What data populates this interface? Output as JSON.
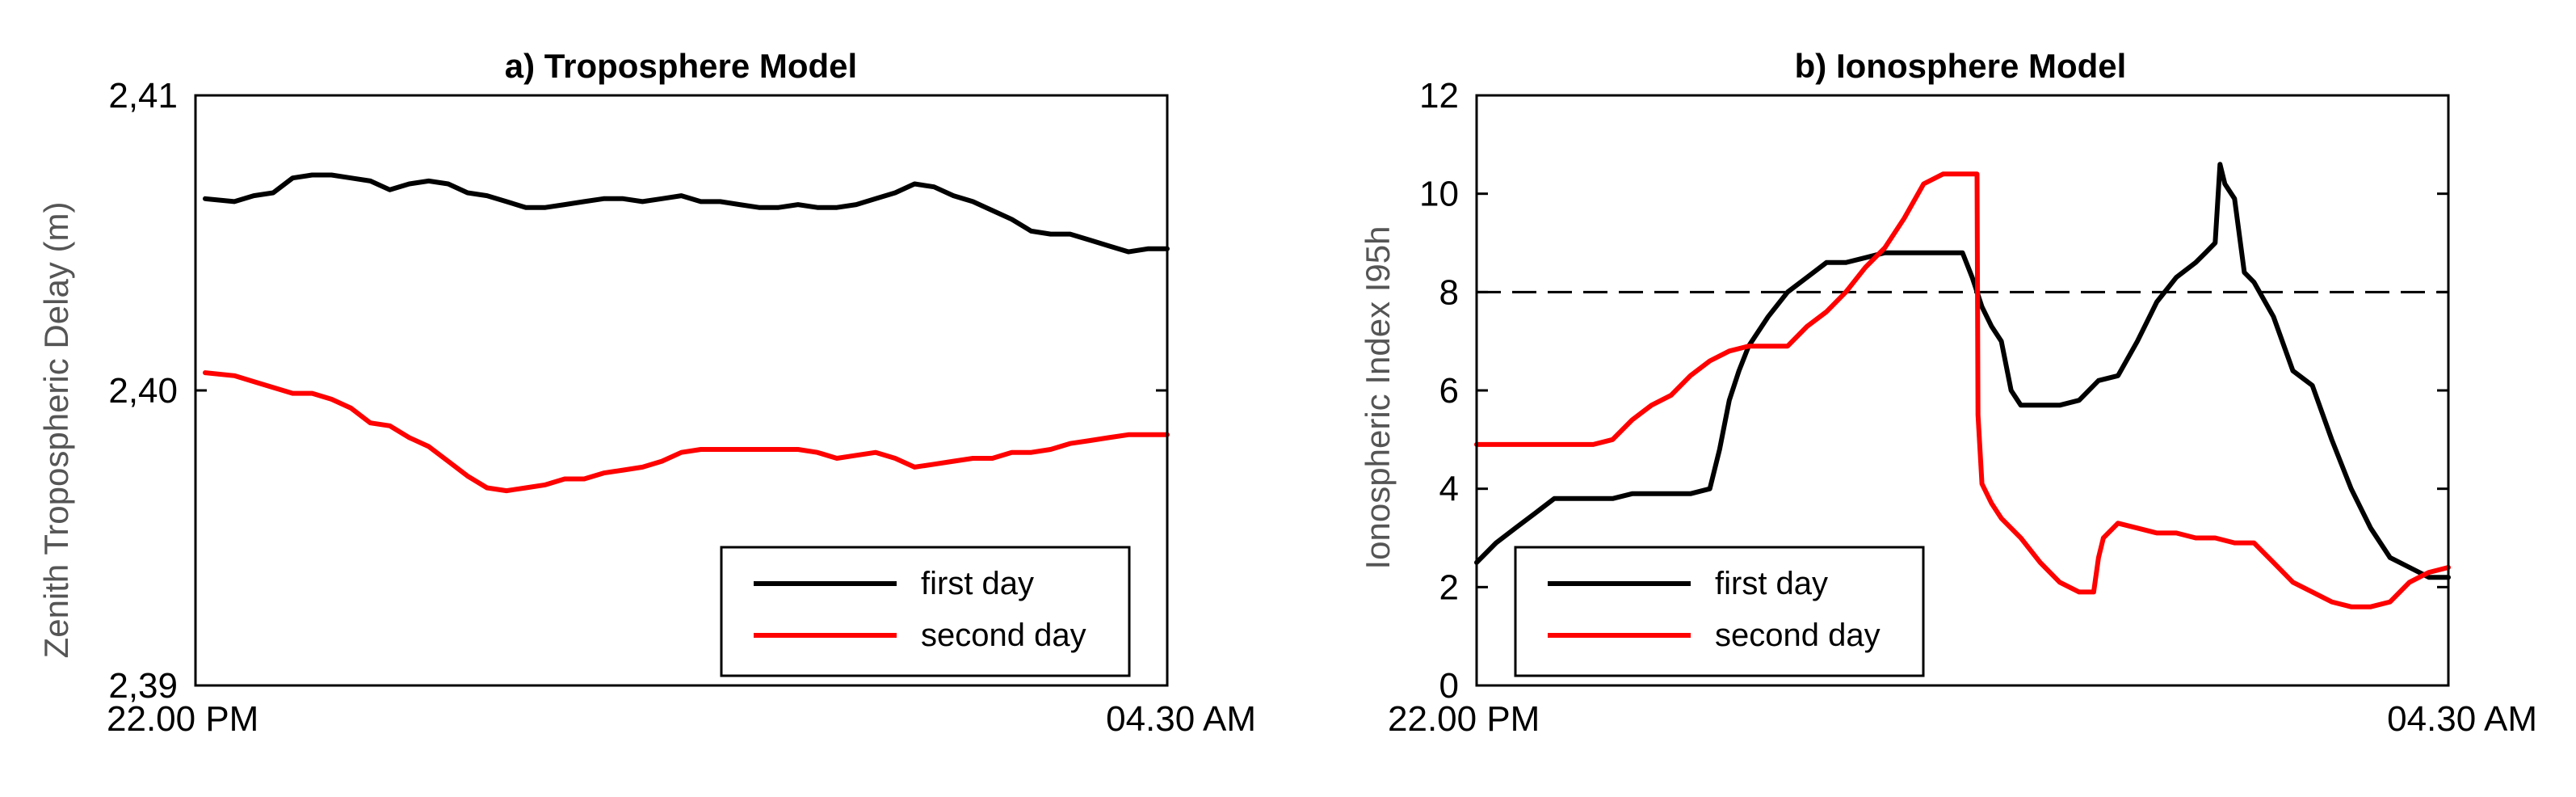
{
  "chart_data": [
    {
      "type": "line",
      "title": "a) Troposphere Model",
      "xlabel": "",
      "ylabel": "Zenith Tropospheric Delay (m)",
      "xlim": [
        0,
        100
      ],
      "ylim": [
        2.39,
        2.41
      ],
      "xtick_values": [
        0,
        100
      ],
      "xtick_labels": [
        "22.00 PM",
        "04.30 AM"
      ],
      "ytick_values": [
        2.39,
        2.4,
        2.41
      ],
      "ytick_labels": [
        "2,39",
        "2,40",
        "2,41"
      ],
      "legend_position": "bottom-right",
      "series": [
        {
          "name": "first day",
          "color": "#000000",
          "x": [
            1,
            4,
            6,
            8,
            10,
            12,
            14,
            16,
            18,
            20,
            22,
            24,
            26,
            28,
            30,
            32,
            34,
            36,
            38,
            40,
            42,
            44,
            46,
            48,
            50,
            52,
            54,
            56,
            58,
            60,
            62,
            64,
            66,
            68,
            70,
            72,
            74,
            76,
            78,
            80,
            82,
            84,
            86,
            88,
            90,
            92,
            94,
            96,
            98,
            100
          ],
          "y": [
            2.4065,
            2.4064,
            2.4066,
            2.4067,
            2.4072,
            2.4073,
            2.4073,
            2.4072,
            2.4071,
            2.4068,
            2.407,
            2.4071,
            2.407,
            2.4067,
            2.4066,
            2.4064,
            2.4062,
            2.4062,
            2.4063,
            2.4064,
            2.4065,
            2.4065,
            2.4064,
            2.4065,
            2.4066,
            2.4064,
            2.4064,
            2.4063,
            2.4062,
            2.4062,
            2.4063,
            2.4062,
            2.4062,
            2.4063,
            2.4065,
            2.4067,
            2.407,
            2.4069,
            2.4066,
            2.4064,
            2.4061,
            2.4058,
            2.4054,
            2.4053,
            2.4053,
            2.4051,
            2.4049,
            2.4047,
            2.4048,
            2.4048
          ]
        },
        {
          "name": "second day",
          "color": "#ff0000",
          "x": [
            1,
            4,
            6,
            8,
            10,
            12,
            14,
            16,
            18,
            20,
            22,
            24,
            26,
            28,
            30,
            32,
            34,
            36,
            38,
            40,
            42,
            44,
            46,
            48,
            50,
            52,
            54,
            56,
            58,
            60,
            62,
            64,
            66,
            68,
            70,
            72,
            74,
            76,
            78,
            80,
            82,
            84,
            86,
            88,
            90,
            92,
            94,
            96,
            98,
            100
          ],
          "y": [
            2.4006,
            2.4005,
            2.4003,
            2.4001,
            2.3999,
            2.3999,
            2.3997,
            2.3994,
            2.3989,
            2.3988,
            2.3984,
            2.3981,
            2.3976,
            2.3971,
            2.3967,
            2.3966,
            2.3967,
            2.3968,
            2.397,
            2.397,
            2.3972,
            2.3973,
            2.3974,
            2.3976,
            2.3979,
            2.398,
            2.398,
            2.398,
            2.398,
            2.398,
            2.398,
            2.3979,
            2.3977,
            2.3978,
            2.3979,
            2.3977,
            2.3974,
            2.3975,
            2.3976,
            2.3977,
            2.3977,
            2.3979,
            2.3979,
            2.398,
            2.3982,
            2.3983,
            2.3984,
            2.3985,
            2.3985,
            2.3985
          ]
        }
      ]
    },
    {
      "type": "line",
      "title": "b) Ionosphere Model",
      "xlabel": "",
      "ylabel": "Ionospheric Index I95h",
      "xlim": [
        0,
        100
      ],
      "ylim": [
        0,
        12
      ],
      "xtick_values": [
        0,
        100
      ],
      "xtick_labels": [
        "22.00 PM",
        "04.30 AM"
      ],
      "ytick_values": [
        0,
        2,
        4,
        6,
        8,
        10,
        12
      ],
      "ytick_labels": [
        "0",
        "2",
        "4",
        "6",
        "8",
        "10",
        "12"
      ],
      "reference_line": {
        "y": 8,
        "style": "dashed"
      },
      "legend_position": "bottom-left",
      "series": [
        {
          "name": "first day",
          "color": "#000000",
          "x": [
            0,
            2,
            4,
            6,
            8,
            10,
            12,
            14,
            16,
            18,
            20,
            22,
            24,
            25,
            26,
            27,
            28,
            30,
            32,
            34,
            36,
            38,
            40,
            42,
            44,
            46,
            48,
            50,
            51,
            52,
            53,
            54,
            55,
            56,
            58,
            60,
            62,
            64,
            66,
            68,
            70,
            72,
            74,
            75,
            76,
            76.5,
            77,
            78,
            79,
            80,
            82,
            84,
            86,
            88,
            90,
            92,
            94,
            96,
            98,
            100
          ],
          "y": [
            2.5,
            2.9,
            3.2,
            3.5,
            3.8,
            3.8,
            3.8,
            3.8,
            3.9,
            3.9,
            3.9,
            3.9,
            4.0,
            4.8,
            5.8,
            6.4,
            6.9,
            7.5,
            8.0,
            8.3,
            8.6,
            8.6,
            8.7,
            8.8,
            8.8,
            8.8,
            8.8,
            8.8,
            8.3,
            7.7,
            7.3,
            7.0,
            6.0,
            5.7,
            5.7,
            5.7,
            5.8,
            6.2,
            6.3,
            7.0,
            7.8,
            8.3,
            8.6,
            8.8,
            9.0,
            10.6,
            10.2,
            9.9,
            8.4,
            8.2,
            7.5,
            6.4,
            6.1,
            5.0,
            4.0,
            3.2,
            2.6,
            2.4,
            2.2,
            2.2
          ]
        },
        {
          "name": "second day",
          "color": "#ff0000",
          "x": [
            0,
            4,
            8,
            12,
            14,
            16,
            18,
            20,
            22,
            24,
            26,
            28,
            30,
            32,
            34,
            36,
            38,
            40,
            42,
            44,
            46,
            48,
            50,
            51.5,
            51.6,
            52,
            53,
            54,
            56,
            58,
            60,
            62,
            63.5,
            64,
            64.5,
            66,
            68,
            70,
            72,
            74,
            76,
            78,
            80,
            82,
            84,
            86,
            88,
            90,
            92,
            94,
            96,
            98,
            100
          ],
          "y": [
            4.9,
            4.9,
            4.9,
            4.9,
            5.0,
            5.4,
            5.7,
            5.9,
            6.3,
            6.6,
            6.8,
            6.9,
            6.9,
            6.9,
            7.3,
            7.6,
            8.0,
            8.5,
            8.9,
            9.5,
            10.2,
            10.4,
            10.4,
            10.4,
            5.5,
            4.1,
            3.7,
            3.4,
            3.0,
            2.5,
            2.1,
            1.9,
            1.9,
            2.6,
            3.0,
            3.3,
            3.2,
            3.1,
            3.1,
            3.0,
            3.0,
            2.9,
            2.9,
            2.5,
            2.1,
            1.9,
            1.7,
            1.6,
            1.6,
            1.7,
            2.1,
            2.3,
            2.4
          ]
        }
      ]
    }
  ]
}
